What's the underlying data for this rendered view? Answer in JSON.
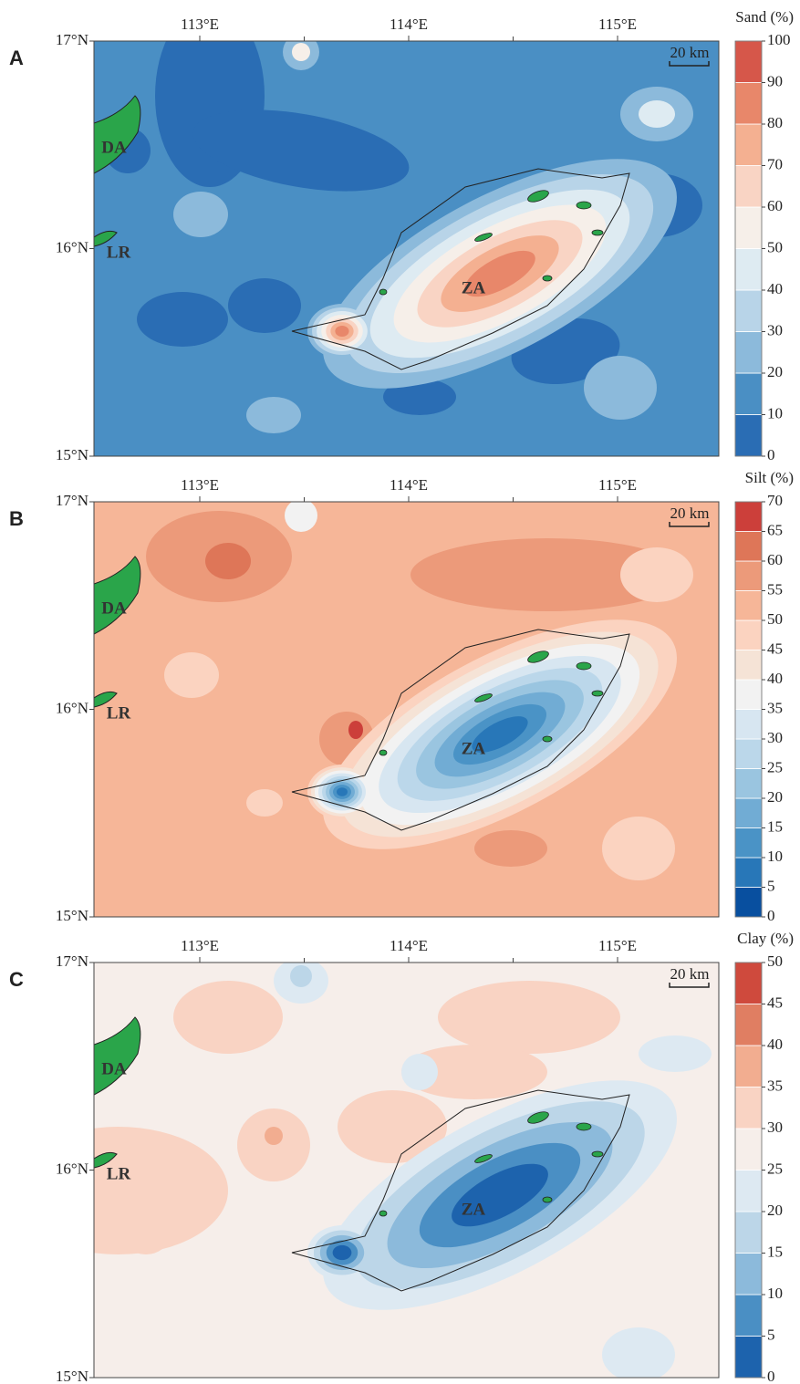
{
  "axes": {
    "x_ticks": [
      {
        "value": 113,
        "label": "113°E"
      },
      {
        "value": 114,
        "label": "114°E"
      },
      {
        "value": 115,
        "label": "115°E"
      }
    ],
    "y_ticks": [
      {
        "value": 17,
        "label": "17°N"
      },
      {
        "value": 16,
        "label": "16°N"
      },
      {
        "value": 15,
        "label": "15°N"
      }
    ]
  },
  "places": [
    "DA",
    "LR",
    "ZA"
  ],
  "scale_bar": "20 km",
  "panels": [
    {
      "label": "A",
      "colorbar": {
        "title": "Sand (%)",
        "ticks": [
          0,
          10,
          20,
          30,
          40,
          50,
          60,
          70,
          80,
          90,
          100
        ],
        "colors": [
          "#2a6db4",
          "#4a8fc4",
          "#8cbadb",
          "#b8d4e8",
          "#deebf2",
          "#f6efe9",
          "#f9d4c4",
          "#f4b091",
          "#e8876a",
          "#d6574a"
        ]
      }
    },
    {
      "label": "B",
      "colorbar": {
        "title": "Silt (%)",
        "ticks": [
          0,
          5,
          10,
          15,
          20,
          25,
          30,
          35,
          40,
          45,
          50,
          55,
          60,
          65,
          70
        ],
        "colors": [
          "#084f9f",
          "#2877b8",
          "#4a93c6",
          "#71acd4",
          "#9ac5e0",
          "#bbd7ea",
          "#d7e6f1",
          "#f2f2f2",
          "#f5e3d6",
          "#fbd3c0",
          "#f6b698",
          "#ec9a7a",
          "#de7658",
          "#cc3f3a"
        ]
      }
    },
    {
      "label": "C",
      "colorbar": {
        "title": "Clay (%)",
        "ticks": [
          0,
          5,
          10,
          15,
          20,
          25,
          30,
          35,
          40,
          45,
          50
        ],
        "colors": [
          "#1d63ad",
          "#4a8fc4",
          "#8cbadb",
          "#bcd6e8",
          "#dde9f2",
          "#f6eeea",
          "#f9d3c3",
          "#f2ad90",
          "#e07e62",
          "#cf4a3d"
        ]
      }
    }
  ]
}
